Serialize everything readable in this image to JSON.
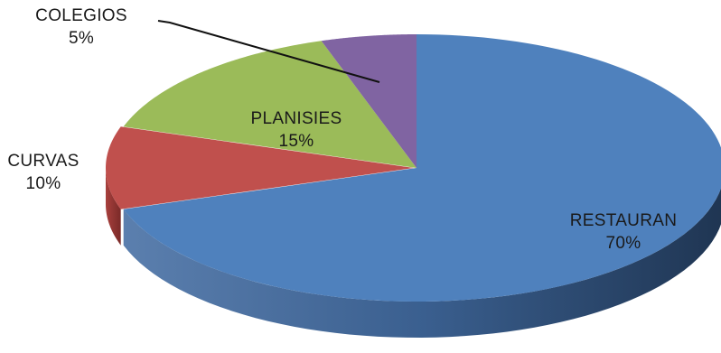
{
  "chart_data": {
    "type": "pie",
    "title": "",
    "slices": [
      {
        "name": "RESTAURAN",
        "value": 70,
        "value_label": "70%",
        "color": "#4F81BD"
      },
      {
        "name": "CURVAS",
        "value": 10,
        "value_label": "10%",
        "color": "#C0504D"
      },
      {
        "name": "PLANISIES",
        "value": 15,
        "value_label": "15%",
        "color": "#9BBB59"
      },
      {
        "name": "COLEGIOS",
        "value": 5,
        "value_label": "5%",
        "color": "#8064A2"
      }
    ],
    "legend": "none",
    "style": "3d-exploded-pie"
  }
}
